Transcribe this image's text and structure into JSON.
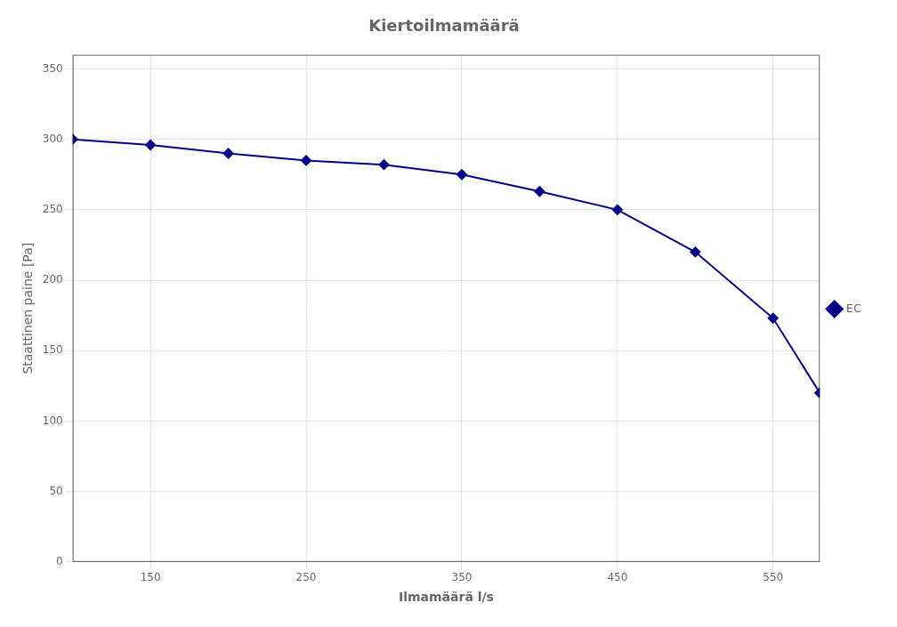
{
  "chart_data": {
    "type": "line",
    "title": "Kiertoilmamäärä",
    "xlabel": "Ilmamäärä l/s",
    "ylabel": "Staattinen paine [Pa]",
    "x": [
      100,
      150,
      200,
      250,
      300,
      350,
      400,
      450,
      500,
      550,
      580
    ],
    "series": [
      {
        "name": "EC",
        "color": "#00008B",
        "marker": "diamond",
        "values": [
          300,
          296,
          290,
          285,
          282,
          275,
          263,
          250,
          220,
          173,
          120
        ]
      }
    ],
    "xlim": [
      100,
      580
    ],
    "ylim": [
      0,
      360
    ],
    "xticks": [
      150,
      250,
      350,
      450,
      550
    ],
    "yticks": [
      0,
      50,
      100,
      150,
      200,
      250,
      300,
      350
    ],
    "grid": true,
    "legend": "right"
  }
}
